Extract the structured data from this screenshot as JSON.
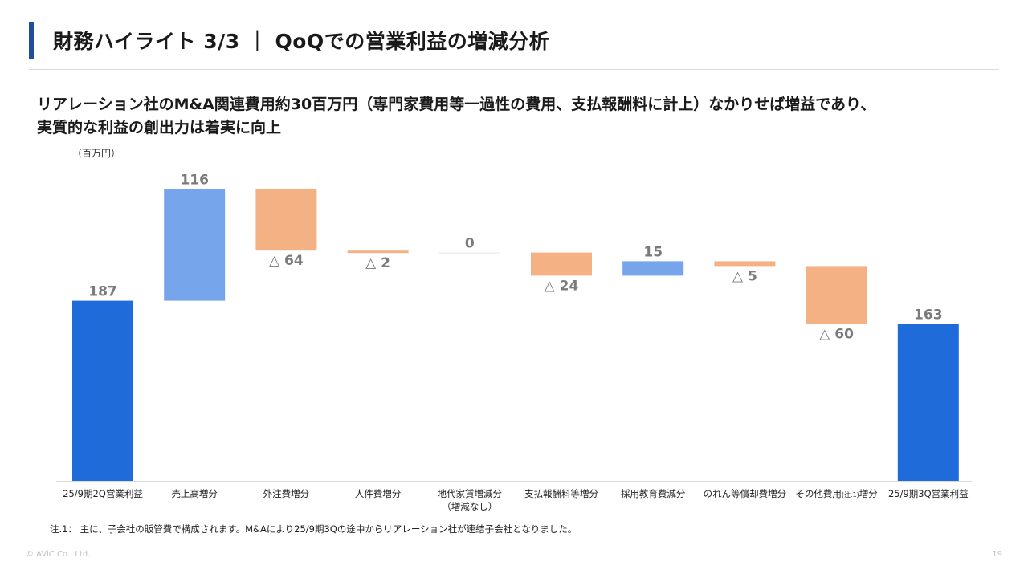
{
  "page": {
    "title": "財務ハイライト 3/3 ｜ QoQでの営業利益の増減分析",
    "headline_line1": "リアレーション社のM&A関連費用約30百万円（専門家費用等一過性の費用、支払報酬料に計上）なかりせば増益であり、",
    "headline_line2": "実質的な利益の創出力は着実に向上",
    "unit": "（百万円）",
    "footnote": "注.1： 主に、子会社の販管費で構成されます。M&Aにより25/9期3Qの途中からリアレーション社が連結子会社となりました。",
    "copyright": "© AViC Co., Ltd.",
    "page_number": "19"
  },
  "colors": {
    "total": "#1f6bd9",
    "increase": "#76a5eb",
    "decrease": "#f4b183",
    "accent": "#1f4e9c"
  },
  "chart_data": {
    "type": "waterfall",
    "categories": [
      [
        "25/9期2Q営業利益"
      ],
      [
        "売上高増分"
      ],
      [
        "外注費増分"
      ],
      [
        "人件費増分"
      ],
      [
        "地代家賃増減分",
        "（増減なし）"
      ],
      [
        "支払報酬料等増分"
      ],
      [
        "採用教育費減分"
      ],
      [
        "のれん等償却費増分"
      ],
      [
        "その他費用",
        "(注.1)",
        "増分"
      ],
      [
        "25/9期3Q営業利益"
      ]
    ],
    "kinds": [
      "total",
      "increase",
      "decrease",
      "decrease",
      "zero",
      "decrease",
      "increase",
      "decrease",
      "decrease",
      "total"
    ],
    "values": [
      187,
      116,
      -64,
      -2,
      0,
      -24,
      15,
      -5,
      -60,
      163
    ],
    "labels": [
      "187",
      "116",
      "△ 64",
      "△ 2",
      "0",
      "△ 24",
      "15",
      "△ 5",
      "△ 60",
      "163"
    ],
    "ylim": [
      0,
      310
    ]
  }
}
